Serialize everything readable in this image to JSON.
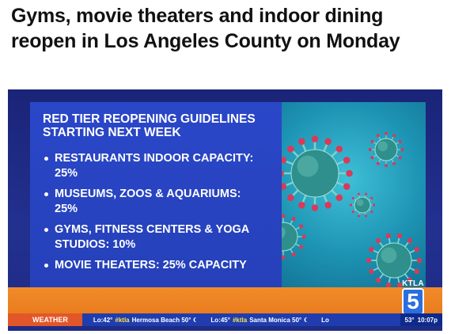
{
  "article": {
    "headline": "Gyms, movie theaters and indoor dining reopen in Los Angeles County on Monday"
  },
  "broadcast": {
    "panel_title": "RED TIER REOPENING GUIDELINES STARTING NEXT WEEK",
    "guidelines": [
      "RESTAURANTS INDOOR CAPACITY: 25%",
      "MUSEUMS, ZOOS & AQUARIUMS: 25%",
      "GYMS, FITNESS CENTERS & YOGA STUDIOS: 10%",
      "MOVIE THEATERS: 25% CAPACITY"
    ],
    "logo_text": "KTLA",
    "logo_number": "5"
  },
  "ticker": {
    "label": "WEATHER",
    "items": [
      {
        "low": "Lo:42°",
        "tag": "#ktla",
        "place": "Hermosa Beach 50°"
      },
      {
        "low": "Lo:45°",
        "tag": "#ktla",
        "place": "Santa Monica 50°"
      }
    ],
    "trailing": "Lo",
    "current_temp": "53°",
    "time": "10:07p"
  },
  "colors": {
    "panel_blue": "#2a47c9",
    "virus_teal": "#1d93b3",
    "spike_red": "#d83a5a",
    "orange_band": "#f08b2a",
    "ticker_blue": "#1f3dae",
    "weather_label": "#e2572a"
  }
}
